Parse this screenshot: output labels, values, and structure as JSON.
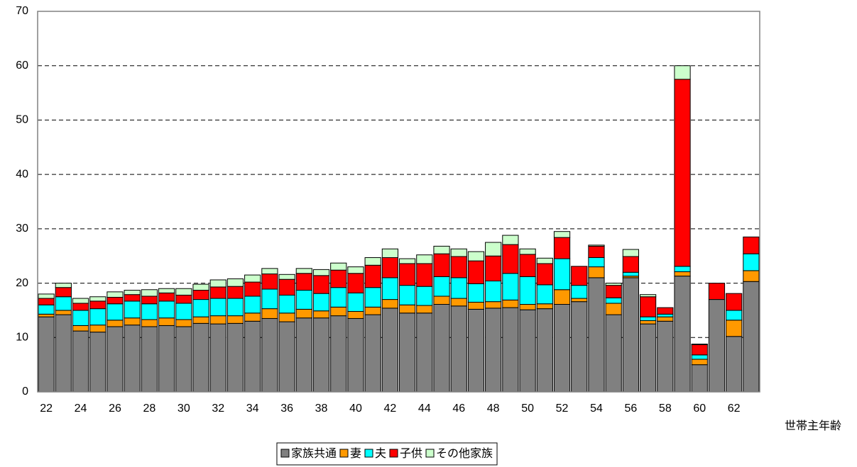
{
  "chart_data": {
    "type": "stacked_bar",
    "x_label": "世帯主年齢",
    "categories": [
      "22",
      null,
      "24",
      null,
      "26",
      null,
      "28",
      null,
      "30",
      null,
      "32",
      null,
      "34",
      null,
      "36",
      null,
      "38",
      null,
      "40",
      null,
      "42",
      null,
      "44",
      null,
      "46",
      null,
      "48",
      null,
      "50",
      null,
      "52",
      null,
      "54",
      null,
      "56",
      null,
      "58",
      null,
      "60",
      null,
      "62",
      null
    ],
    "series": [
      {
        "name": "家族共通",
        "color": "#808080",
        "values": [
          13.8,
          14.2,
          11.2,
          11.0,
          12.0,
          12.3,
          12.0,
          12.2,
          12.0,
          12.6,
          12.5,
          12.6,
          13.0,
          13.5,
          12.9,
          13.6,
          13.6,
          14.0,
          13.5,
          14.2,
          15.4,
          14.5,
          14.5,
          16.1,
          15.8,
          15.2,
          15.4,
          15.5,
          15.1,
          15.3,
          16.1,
          16.6,
          21.0,
          14.2,
          21.0,
          12.5,
          13.0,
          21.3,
          5.0,
          17.0,
          10.2,
          20.3
        ]
      },
      {
        "name": "妻",
        "color": "#ff9900",
        "values": [
          0.5,
          0.8,
          1.0,
          1.3,
          1.2,
          1.3,
          1.3,
          1.4,
          1.3,
          1.2,
          1.5,
          1.4,
          1.5,
          1.8,
          1.6,
          1.6,
          1.3,
          1.6,
          1.3,
          1.4,
          1.6,
          1.5,
          1.4,
          1.5,
          1.4,
          1.3,
          1.2,
          1.4,
          1.0,
          0.9,
          2.7,
          0.6,
          2.0,
          2.1,
          0.3,
          0.6,
          0.8,
          0.8,
          1.0,
          0,
          3.0,
          2.0
        ]
      },
      {
        "name": "夫",
        "color": "#00ffff",
        "values": [
          1.7,
          2.5,
          2.8,
          3.0,
          3.0,
          3.1,
          2.9,
          3.1,
          3.0,
          3.2,
          3.2,
          3.2,
          3.1,
          3.6,
          3.3,
          3.5,
          3.2,
          3.6,
          3.4,
          3.6,
          4.0,
          3.6,
          3.5,
          3.6,
          3.8,
          3.4,
          3.8,
          4.9,
          5.1,
          3.5,
          5.7,
          2.4,
          1.7,
          1.0,
          0.7,
          0.7,
          0.5,
          1.0,
          0.8,
          0,
          1.8,
          3.1
        ]
      },
      {
        "name": "子供",
        "color": "#ff0000",
        "values": [
          1.2,
          1.7,
          1.3,
          1.4,
          1.2,
          1.2,
          1.4,
          1.5,
          1.5,
          1.7,
          2.1,
          2.2,
          2.6,
          2.8,
          2.9,
          3.1,
          3.3,
          3.2,
          3.6,
          4.1,
          3.7,
          4.0,
          4.2,
          4.2,
          3.9,
          4.2,
          4.6,
          5.3,
          4.1,
          3.9,
          3.9,
          3.5,
          2.1,
          2.3,
          2.9,
          3.7,
          1.2,
          34.4,
          1.9,
          3.0,
          3.1,
          3.1
        ]
      },
      {
        "name": "その他家族",
        "color": "#ccffcc",
        "values": [
          0.8,
          0.8,
          0.9,
          0.8,
          1.0,
          0.8,
          1.2,
          0.8,
          1.2,
          1.1,
          1.3,
          1.4,
          1.3,
          1.0,
          0.9,
          0.9,
          1.1,
          1.3,
          1.2,
          1.4,
          1.6,
          0.9,
          1.6,
          1.4,
          1.4,
          1.7,
          2.5,
          1.7,
          1.0,
          1.0,
          1.1,
          0,
          0.2,
          0.4,
          1.3,
          0.4,
          0,
          2.5,
          0.1,
          0,
          0,
          0
        ]
      }
    ],
    "ylim": [
      0,
      70
    ],
    "yticks": [
      0,
      10,
      20,
      30,
      40,
      50,
      60,
      70
    ],
    "grid": true,
    "legend": "bottom"
  }
}
